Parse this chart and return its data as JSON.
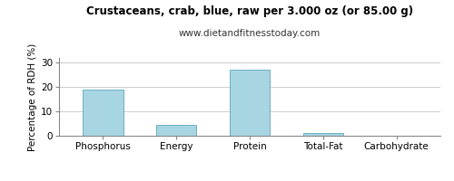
{
  "title": "Crustaceans, crab, blue, raw per 3.000 oz (or 85.00 g)",
  "subtitle": "www.dietandfitnesstoday.com",
  "categories": [
    "Phosphorus",
    "Energy",
    "Protein",
    "Total-Fat",
    "Carbohydrate"
  ],
  "values": [
    19.0,
    4.5,
    27.0,
    1.0,
    0.0
  ],
  "bar_color": "#a8d5e2",
  "bar_edge_color": "#6bafc4",
  "ylabel": "Percentage of RDH (%)",
  "ylim": [
    0,
    32
  ],
  "yticks": [
    0,
    10,
    20,
    30
  ],
  "background_color": "#ffffff",
  "grid_color": "#cccccc",
  "title_fontsize": 8.5,
  "subtitle_fontsize": 7.5,
  "tick_fontsize": 7.5,
  "ylabel_fontsize": 7.5,
  "bar_width": 0.55
}
